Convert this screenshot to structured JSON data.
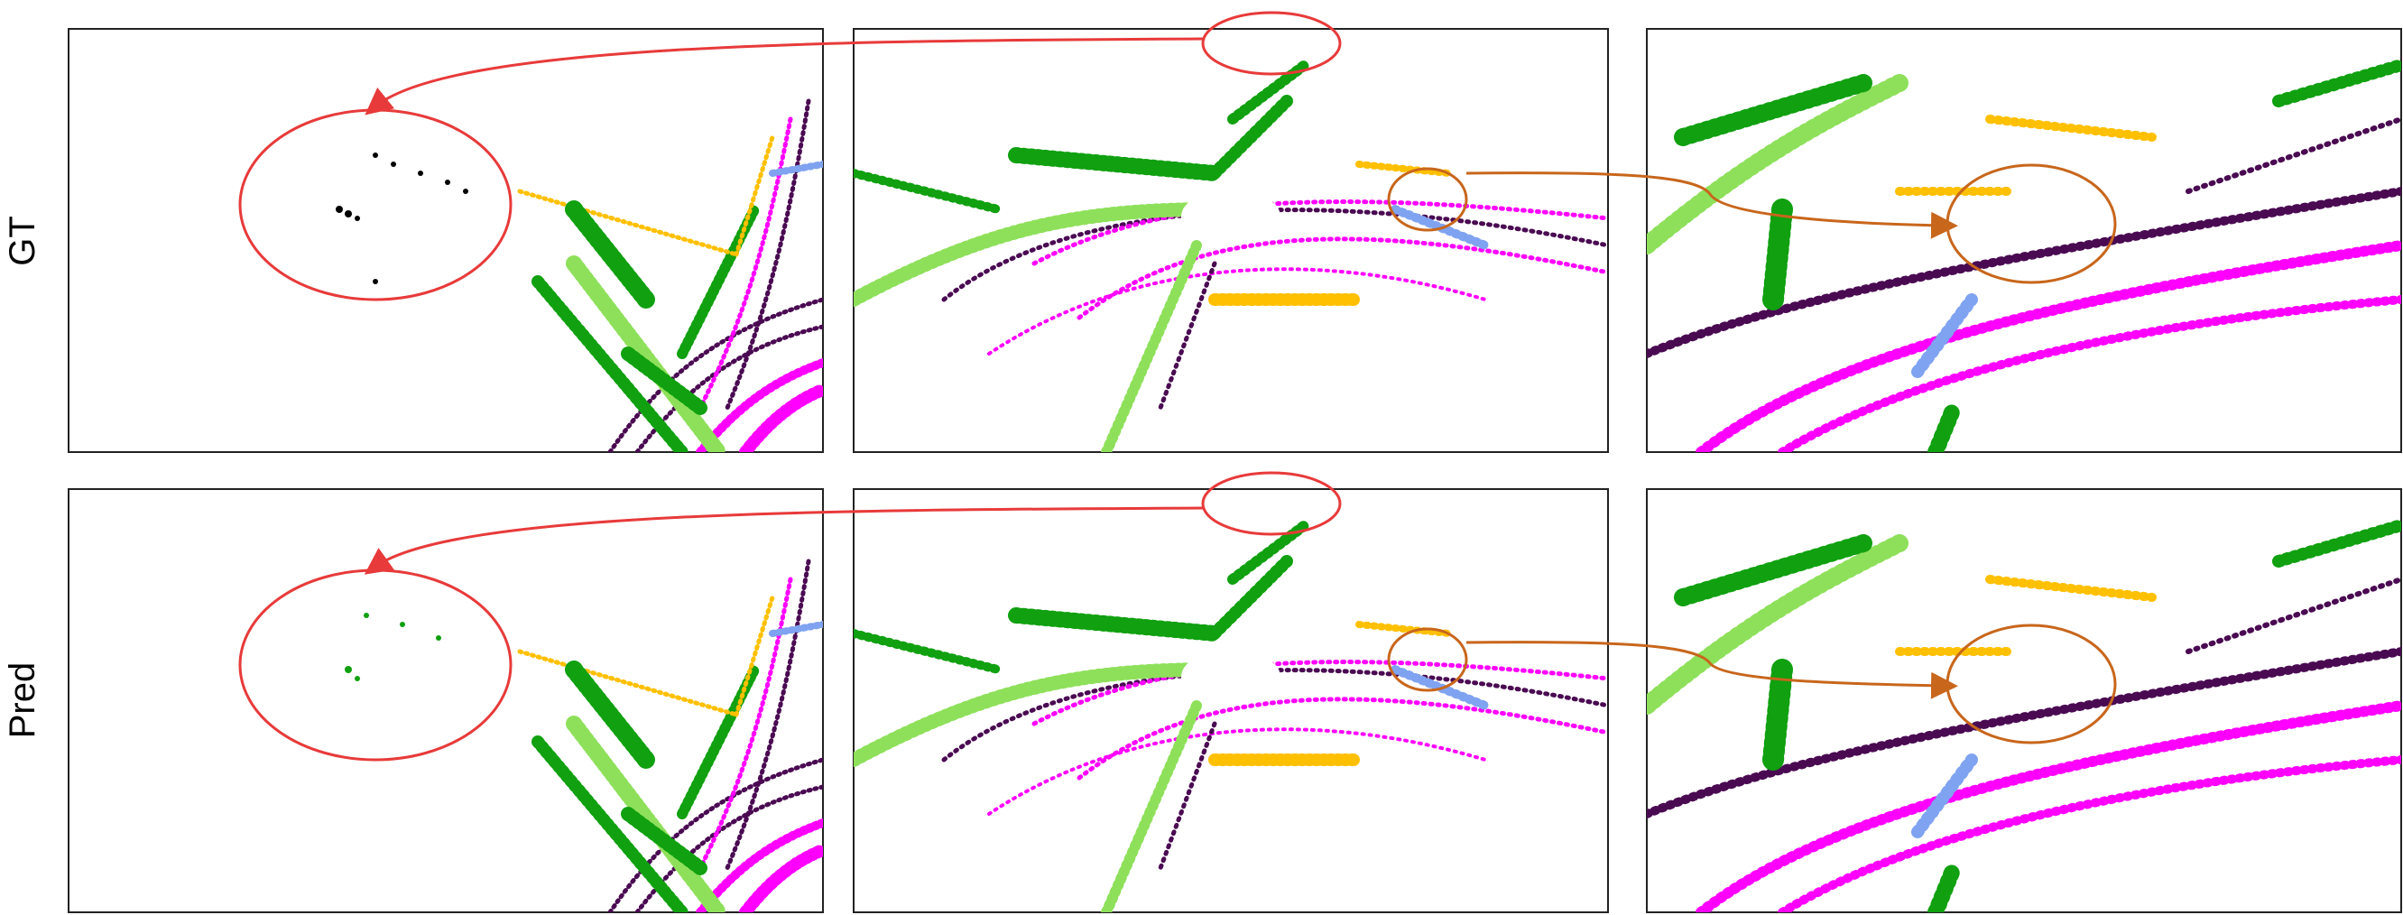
{
  "rows": [
    {
      "label": "GT"
    },
    {
      "label": "Pred"
    }
  ]
}
